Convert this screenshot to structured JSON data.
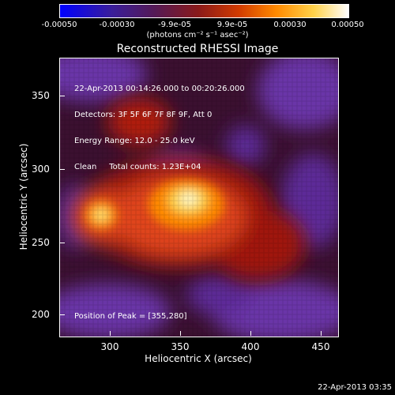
{
  "colorbar": {
    "ticks": [
      "-0.00050",
      "-0.00030",
      "-9.9e-05",
      "9.9e-05",
      "0.00030",
      "0.00050"
    ],
    "units": "(photons cm⁻² s⁻¹ asec⁻²)"
  },
  "title": "Reconstructed RHESSI Image",
  "info": {
    "line1": "22-Apr-2013 00:14:26.000 to 00:20:26.000",
    "line2": "Detectors: 3F 5F 6F 7F 8F 9F, Att 0",
    "line3": "Energy Range: 12.0 - 25.0 keV",
    "line4": "Clean     Total counts: 1.23E+04"
  },
  "peak_text": "Position of Peak = [355,280]",
  "axes": {
    "xlabel": "Heliocentric X (arcsec)",
    "ylabel": "Heliocentric Y (arcsec)",
    "xticks": [
      "300",
      "350",
      "400",
      "450"
    ],
    "yticks": [
      "350",
      "300",
      "250",
      "200"
    ]
  },
  "timestamp": "22-Apr-2013 03:35",
  "colors": {
    "blue": "#0000ff",
    "purple": "#6a34a8",
    "red": "#c8231a",
    "orange": "#ff8a00",
    "yellow": "#ffe070",
    "white": "#ffffff"
  }
}
